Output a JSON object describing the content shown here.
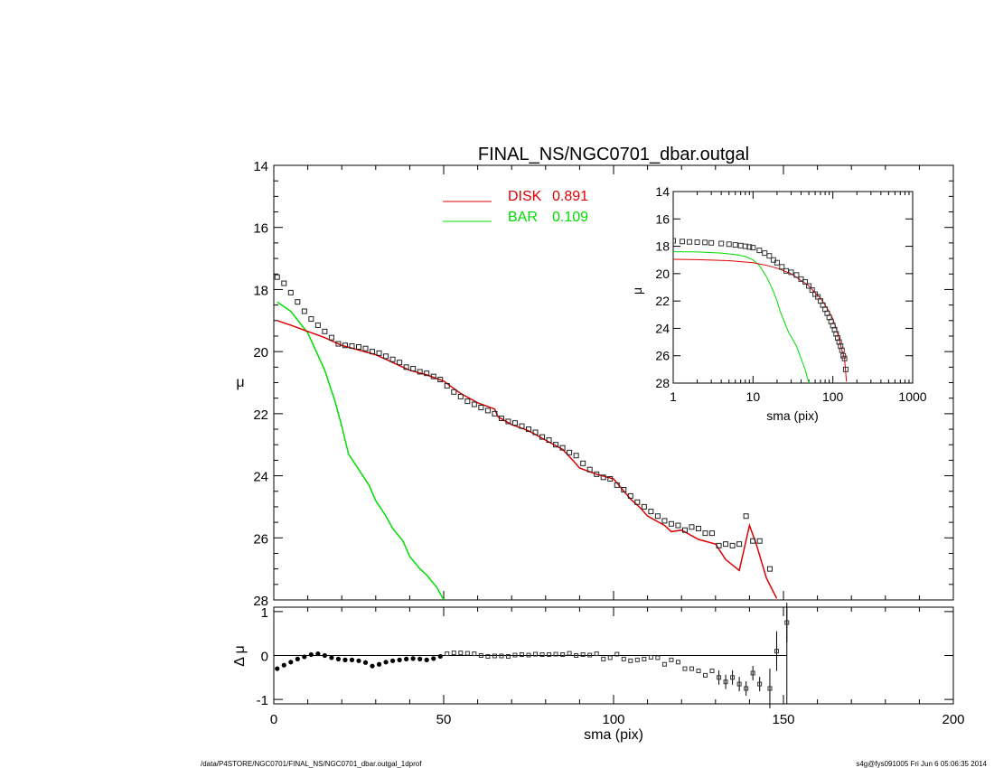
{
  "title": "FINAL_NS/NGC0701_dbar.outgal",
  "footer_left": "/data/P4STORE/NGC0701/FINAL_NS/NGC0701_dbar.outgal_1dprof",
  "footer_right": "s4g@fys091005  Fri Jun  6 05:06:35 2014",
  "colors": {
    "disk": "#dd0000",
    "bar": "#00dd00",
    "data": "#000000"
  },
  "chart_data": [
    {
      "id": "main",
      "type": "line",
      "title": "FINAL_NS/NGC0701_dbar.outgal",
      "xlabel": "",
      "ylabel": "μ",
      "xlim": [
        0,
        200
      ],
      "ylim": [
        28,
        14
      ],
      "xticks": [
        "0",
        "50",
        "100",
        "150",
        "200"
      ],
      "yticks": [
        "14",
        "16",
        "18",
        "20",
        "22",
        "24",
        "26",
        "28"
      ],
      "legend": [
        {
          "name": "DISK",
          "value": "0.891",
          "color": "#dd0000"
        },
        {
          "name": "BAR",
          "value": "0.109",
          "color": "#00dd00"
        }
      ],
      "series": [
        {
          "name": "DISK",
          "x": [
            1,
            5,
            10,
            15,
            20,
            25,
            30,
            35,
            40,
            45,
            50,
            55,
            60,
            65,
            66,
            70,
            75,
            80,
            85,
            88,
            90,
            95,
            100,
            105,
            108,
            110,
            115,
            117,
            120,
            125,
            130,
            133,
            137,
            140,
            142,
            145,
            148
          ],
          "y": [
            19.0,
            19.15,
            19.35,
            19.55,
            19.8,
            19.95,
            20.1,
            20.35,
            20.6,
            20.75,
            20.95,
            21.35,
            21.65,
            21.85,
            22.1,
            22.35,
            22.55,
            22.85,
            23.15,
            23.5,
            23.75,
            23.95,
            24.1,
            24.75,
            25.05,
            25.3,
            25.6,
            25.8,
            25.75,
            26.05,
            26.2,
            26.7,
            27.05,
            25.6,
            26.2,
            27.3,
            27.95
          ]
        },
        {
          "name": "BAR",
          "x": [
            1,
            5,
            10,
            15,
            18,
            20,
            22,
            25,
            28,
            30,
            33,
            35,
            38,
            40,
            43,
            45,
            48,
            50
          ],
          "y": [
            18.4,
            18.7,
            19.4,
            20.6,
            21.6,
            22.4,
            23.3,
            23.8,
            24.3,
            24.8,
            25.3,
            25.7,
            26.1,
            26.6,
            27.0,
            27.2,
            27.6,
            28.0
          ]
        },
        {
          "name": "data",
          "type": "scatter",
          "x": [
            1,
            3,
            5,
            7,
            9,
            11,
            13,
            15,
            17,
            19,
            21,
            23,
            25,
            27,
            29,
            31,
            33,
            35,
            37,
            39,
            41,
            43,
            45,
            47,
            49,
            51,
            53,
            55,
            57,
            59,
            61,
            63,
            65,
            67,
            69,
            71,
            73,
            75,
            77,
            79,
            81,
            83,
            85,
            87,
            89,
            91,
            93,
            95,
            97,
            99,
            101,
            103,
            105,
            107,
            109,
            111,
            113,
            115,
            117,
            119,
            121,
            123,
            125,
            127,
            129,
            131,
            133,
            135,
            137,
            139,
            141,
            143,
            146
          ],
          "y": [
            17.6,
            17.8,
            18.1,
            18.4,
            18.7,
            18.95,
            19.15,
            19.35,
            19.55,
            19.75,
            19.8,
            19.82,
            19.85,
            19.9,
            20.0,
            20.05,
            20.15,
            20.25,
            20.35,
            20.5,
            20.55,
            20.65,
            20.7,
            20.8,
            20.9,
            21.1,
            21.3,
            21.45,
            21.6,
            21.7,
            21.8,
            21.9,
            22.0,
            22.15,
            22.25,
            22.3,
            22.4,
            22.5,
            22.6,
            22.75,
            22.85,
            23.0,
            23.1,
            23.25,
            23.35,
            23.6,
            23.8,
            23.95,
            24.05,
            24.1,
            24.3,
            24.45,
            24.65,
            24.85,
            25.0,
            25.15,
            25.3,
            25.45,
            25.55,
            25.6,
            25.75,
            25.65,
            25.7,
            25.85,
            25.85,
            26.25,
            26.2,
            26.25,
            26.2,
            25.3,
            26.1,
            26.1,
            27.0
          ]
        }
      ]
    },
    {
      "id": "residual",
      "type": "scatter",
      "xlabel": "sma (pix)",
      "ylabel": "Δ μ",
      "xlim": [
        0,
        200
      ],
      "ylim": [
        -1.1,
        1.1
      ],
      "xticks": [
        "0",
        "50",
        "100",
        "150",
        "200"
      ],
      "yticks": [
        "1",
        "0",
        "-1"
      ],
      "hline": 0,
      "vline": 151,
      "series": [
        {
          "name": "residual",
          "x": [
            1,
            3,
            5,
            7,
            9,
            11,
            13,
            15,
            17,
            19,
            21,
            23,
            25,
            27,
            29,
            31,
            33,
            35,
            37,
            39,
            41,
            43,
            45,
            47,
            49,
            51,
            53,
            55,
            57,
            59,
            61,
            63,
            65,
            67,
            69,
            71,
            73,
            75,
            77,
            79,
            81,
            83,
            85,
            87,
            89,
            91,
            93,
            95,
            97,
            99,
            101,
            103,
            105,
            107,
            109,
            111,
            113,
            115,
            117,
            119,
            121,
            123,
            125,
            127,
            129,
            131,
            133,
            135,
            137,
            139,
            141,
            143,
            146,
            148,
            151
          ],
          "y": [
            -0.3,
            -0.22,
            -0.15,
            -0.08,
            -0.03,
            0.02,
            0.04,
            0.0,
            -0.05,
            -0.08,
            -0.1,
            -0.1,
            -0.12,
            -0.16,
            -0.24,
            -0.2,
            -0.15,
            -0.12,
            -0.1,
            -0.08,
            -0.07,
            -0.08,
            -0.1,
            -0.07,
            -0.02,
            0.04,
            0.06,
            0.06,
            0.05,
            0.04,
            0.0,
            -0.02,
            -0.01,
            -0.01,
            -0.02,
            0.01,
            0.02,
            0.01,
            0.03,
            0.02,
            0.02,
            0.03,
            0.02,
            0.05,
            0.0,
            0.02,
            0.01,
            0.04,
            -0.08,
            -0.05,
            0.03,
            -0.08,
            -0.12,
            -0.1,
            -0.08,
            -0.04,
            -0.05,
            -0.2,
            -0.1,
            -0.15,
            -0.3,
            -0.3,
            -0.35,
            -0.45,
            -0.35,
            -0.5,
            -0.6,
            -0.5,
            -0.65,
            -0.75,
            -0.4,
            -0.65,
            -0.75,
            0.1,
            0.75
          ]
        }
      ]
    },
    {
      "id": "inset",
      "type": "line",
      "xlabel": "sma (pix)",
      "ylabel": "μ",
      "xscale": "log",
      "xlim": [
        1,
        1000
      ],
      "ylim": [
        28,
        14
      ],
      "xticks": [
        "1",
        "10",
        "100",
        "1000"
      ],
      "yticks": [
        "14",
        "16",
        "18",
        "20",
        "22",
        "24",
        "26",
        "28"
      ],
      "series": [
        {
          "name": "DISK",
          "x": [
            1,
            2,
            5,
            10,
            15,
            20,
            30,
            40,
            50,
            60,
            70,
            80,
            90,
            100,
            110,
            120,
            130,
            140,
            148
          ],
          "y": [
            18.95,
            18.98,
            19.05,
            19.2,
            19.4,
            19.6,
            20.0,
            20.5,
            20.9,
            21.4,
            21.8,
            22.3,
            22.8,
            23.3,
            24.0,
            24.8,
            25.6,
            26.2,
            27.9
          ]
        },
        {
          "name": "BAR",
          "x": [
            1,
            2,
            4,
            6,
            8,
            10,
            12,
            15,
            18,
            20,
            22,
            25,
            28,
            30,
            35,
            40,
            45,
            50
          ],
          "y": [
            18.4,
            18.42,
            18.5,
            18.6,
            18.75,
            19.0,
            19.4,
            20.3,
            21.3,
            22.0,
            22.8,
            23.6,
            24.3,
            24.6,
            25.3,
            26.2,
            27.0,
            28.0
          ]
        },
        {
          "name": "data",
          "type": "scatter",
          "x": [
            1,
            1.3,
            1.6,
            2,
            2.5,
            3,
            4,
            5,
            6,
            7,
            8,
            9,
            10,
            12,
            14,
            16,
            18,
            20,
            23,
            26,
            30,
            35,
            40,
            45,
            50,
            55,
            60,
            65,
            70,
            75,
            80,
            85,
            90,
            95,
            100,
            105,
            110,
            115,
            120,
            125,
            130,
            135,
            140,
            145
          ],
          "y": [
            17.6,
            17.65,
            17.68,
            17.7,
            17.72,
            17.75,
            17.8,
            17.85,
            17.9,
            17.95,
            18.0,
            18.05,
            18.1,
            18.3,
            18.5,
            18.7,
            19.0,
            19.2,
            19.5,
            19.8,
            19.9,
            20.1,
            20.4,
            20.6,
            20.9,
            21.2,
            21.5,
            21.7,
            22.0,
            22.3,
            22.6,
            22.9,
            23.2,
            23.5,
            23.8,
            24.1,
            24.4,
            24.7,
            25.0,
            25.3,
            25.6,
            26.0,
            26.2,
            27.0
          ]
        }
      ]
    }
  ]
}
